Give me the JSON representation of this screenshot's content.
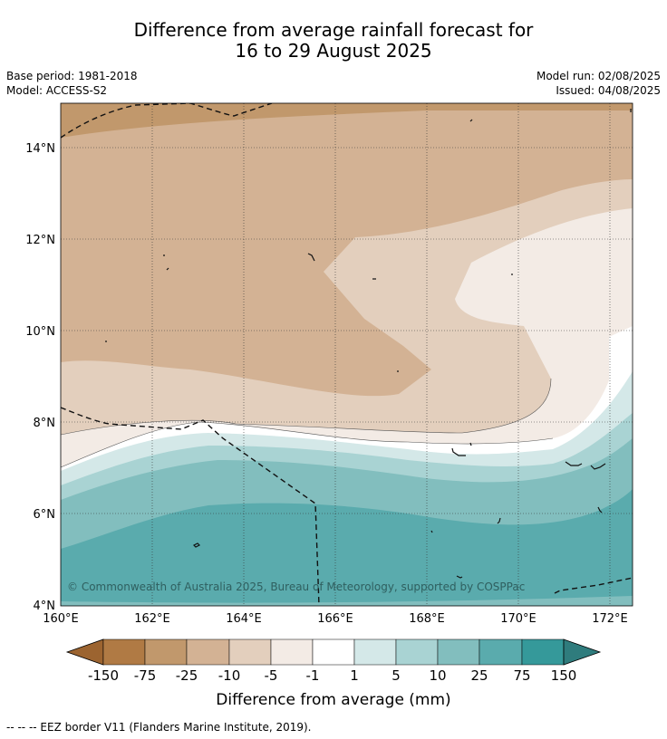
{
  "header": {
    "title_line1": "Difference from average rainfall forecast for",
    "title_line2": "16 to 29 August 2025",
    "base_period": "Base period: 1981-2018",
    "model": "Model: ACCESS-S2",
    "model_run": "Model run: 02/08/2025",
    "issued": "Issued: 04/08/2025"
  },
  "map": {
    "lat_labels": [
      "14°N",
      "12°N",
      "10°N",
      "8°N",
      "6°N",
      "4°N"
    ],
    "lat_values": [
      14,
      12,
      10,
      8,
      6,
      4
    ],
    "lon_labels": [
      "160°E",
      "162°E",
      "164°E",
      "166°E",
      "168°E",
      "170°E",
      "172°E"
    ],
    "lon_values": [
      160,
      162,
      164,
      166,
      168,
      170,
      172
    ],
    "lon_range": [
      160,
      172.5
    ],
    "lat_range": [
      4,
      15
    ],
    "copyright": "© Commonwealth of Australia 2025, Bureau of Meteorology, supported by COSPPac"
  },
  "colorbar": {
    "tick_labels": [
      "-150",
      "-75",
      "-25",
      "-10",
      "-5",
      "-1",
      "1",
      "5",
      "10",
      "25",
      "75",
      "150"
    ],
    "colors": [
      "#9c6430",
      "#b07a44",
      "#c1986c",
      "#d3b294",
      "#e3cfbd",
      "#f3ebe5",
      "#ffffff",
      "#d4e8e8",
      "#a9d3d3",
      "#82bebe",
      "#5aabad",
      "#35999a",
      "#2f7c7d"
    ],
    "label": "Difference from average (mm)"
  },
  "footer": {
    "legend_text": "-- -- -- EEZ border V11 (Flanders Marine Institute, 2019)."
  }
}
